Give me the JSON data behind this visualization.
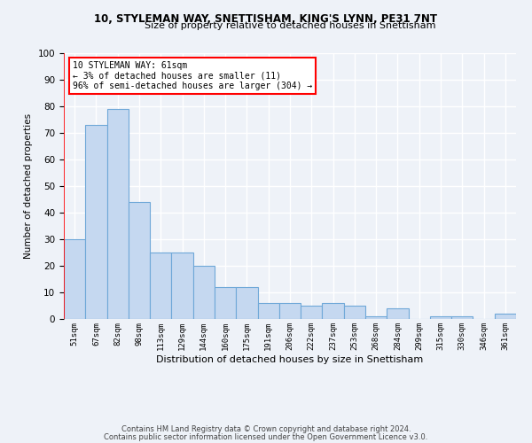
{
  "title1": "10, STYLEMAN WAY, SNETTISHAM, KING'S LYNN, PE31 7NT",
  "title2": "Size of property relative to detached houses in Snettisham",
  "xlabel": "Distribution of detached houses by size in Snettisham",
  "ylabel": "Number of detached properties",
  "categories": [
    "51sqm",
    "67sqm",
    "82sqm",
    "98sqm",
    "113sqm",
    "129sqm",
    "144sqm",
    "160sqm",
    "175sqm",
    "191sqm",
    "206sqm",
    "222sqm",
    "237sqm",
    "253sqm",
    "268sqm",
    "284sqm",
    "299sqm",
    "315sqm",
    "330sqm",
    "346sqm",
    "361sqm"
  ],
  "values": [
    30,
    73,
    79,
    44,
    25,
    25,
    20,
    12,
    12,
    6,
    6,
    5,
    6,
    5,
    1,
    4,
    0,
    1,
    1,
    0,
    2
  ],
  "bar_color": "#c5d8f0",
  "bar_edge_color": "#6fa8d8",
  "annotation_box_text": "10 STYLEMAN WAY: 61sqm\n← 3% of detached houses are smaller (11)\n96% of semi-detached houses are larger (304) →",
  "box_color": "white",
  "box_edge_color": "red",
  "footer1": "Contains HM Land Registry data © Crown copyright and database right 2024.",
  "footer2": "Contains public sector information licensed under the Open Government Licence v3.0.",
  "ylim": [
    0,
    100
  ],
  "background_color": "#eef2f8",
  "grid_color": "white"
}
